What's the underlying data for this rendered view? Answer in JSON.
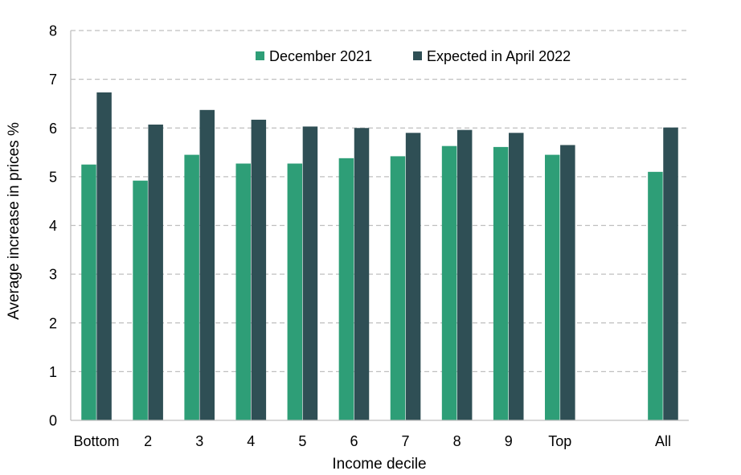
{
  "chart_data": {
    "type": "bar",
    "title": "",
    "xlabel": "Income decile",
    "ylabel": "Average increase in prices %",
    "ylim": [
      0,
      8
    ],
    "yticks": [
      "0",
      "1",
      "2",
      "3",
      "4",
      "5",
      "6",
      "7",
      "8"
    ],
    "grid": "horizontal-dashed",
    "legend_placement": "top",
    "categories": [
      "Bottom",
      "2",
      "3",
      "4",
      "5",
      "6",
      "7",
      "8",
      "9",
      "Top",
      "",
      "All"
    ],
    "series": [
      {
        "name": "December 2021",
        "color": "#2e9e77",
        "values": [
          5.25,
          4.92,
          5.45,
          5.27,
          5.27,
          5.38,
          5.42,
          5.63,
          5.61,
          5.45,
          null,
          5.1
        ]
      },
      {
        "name": "Expected in April 2022",
        "color": "#2f4f55",
        "values": [
          6.73,
          6.07,
          6.37,
          6.17,
          6.03,
          6.0,
          5.9,
          5.96,
          5.9,
          5.65,
          null,
          6.01
        ]
      }
    ]
  }
}
